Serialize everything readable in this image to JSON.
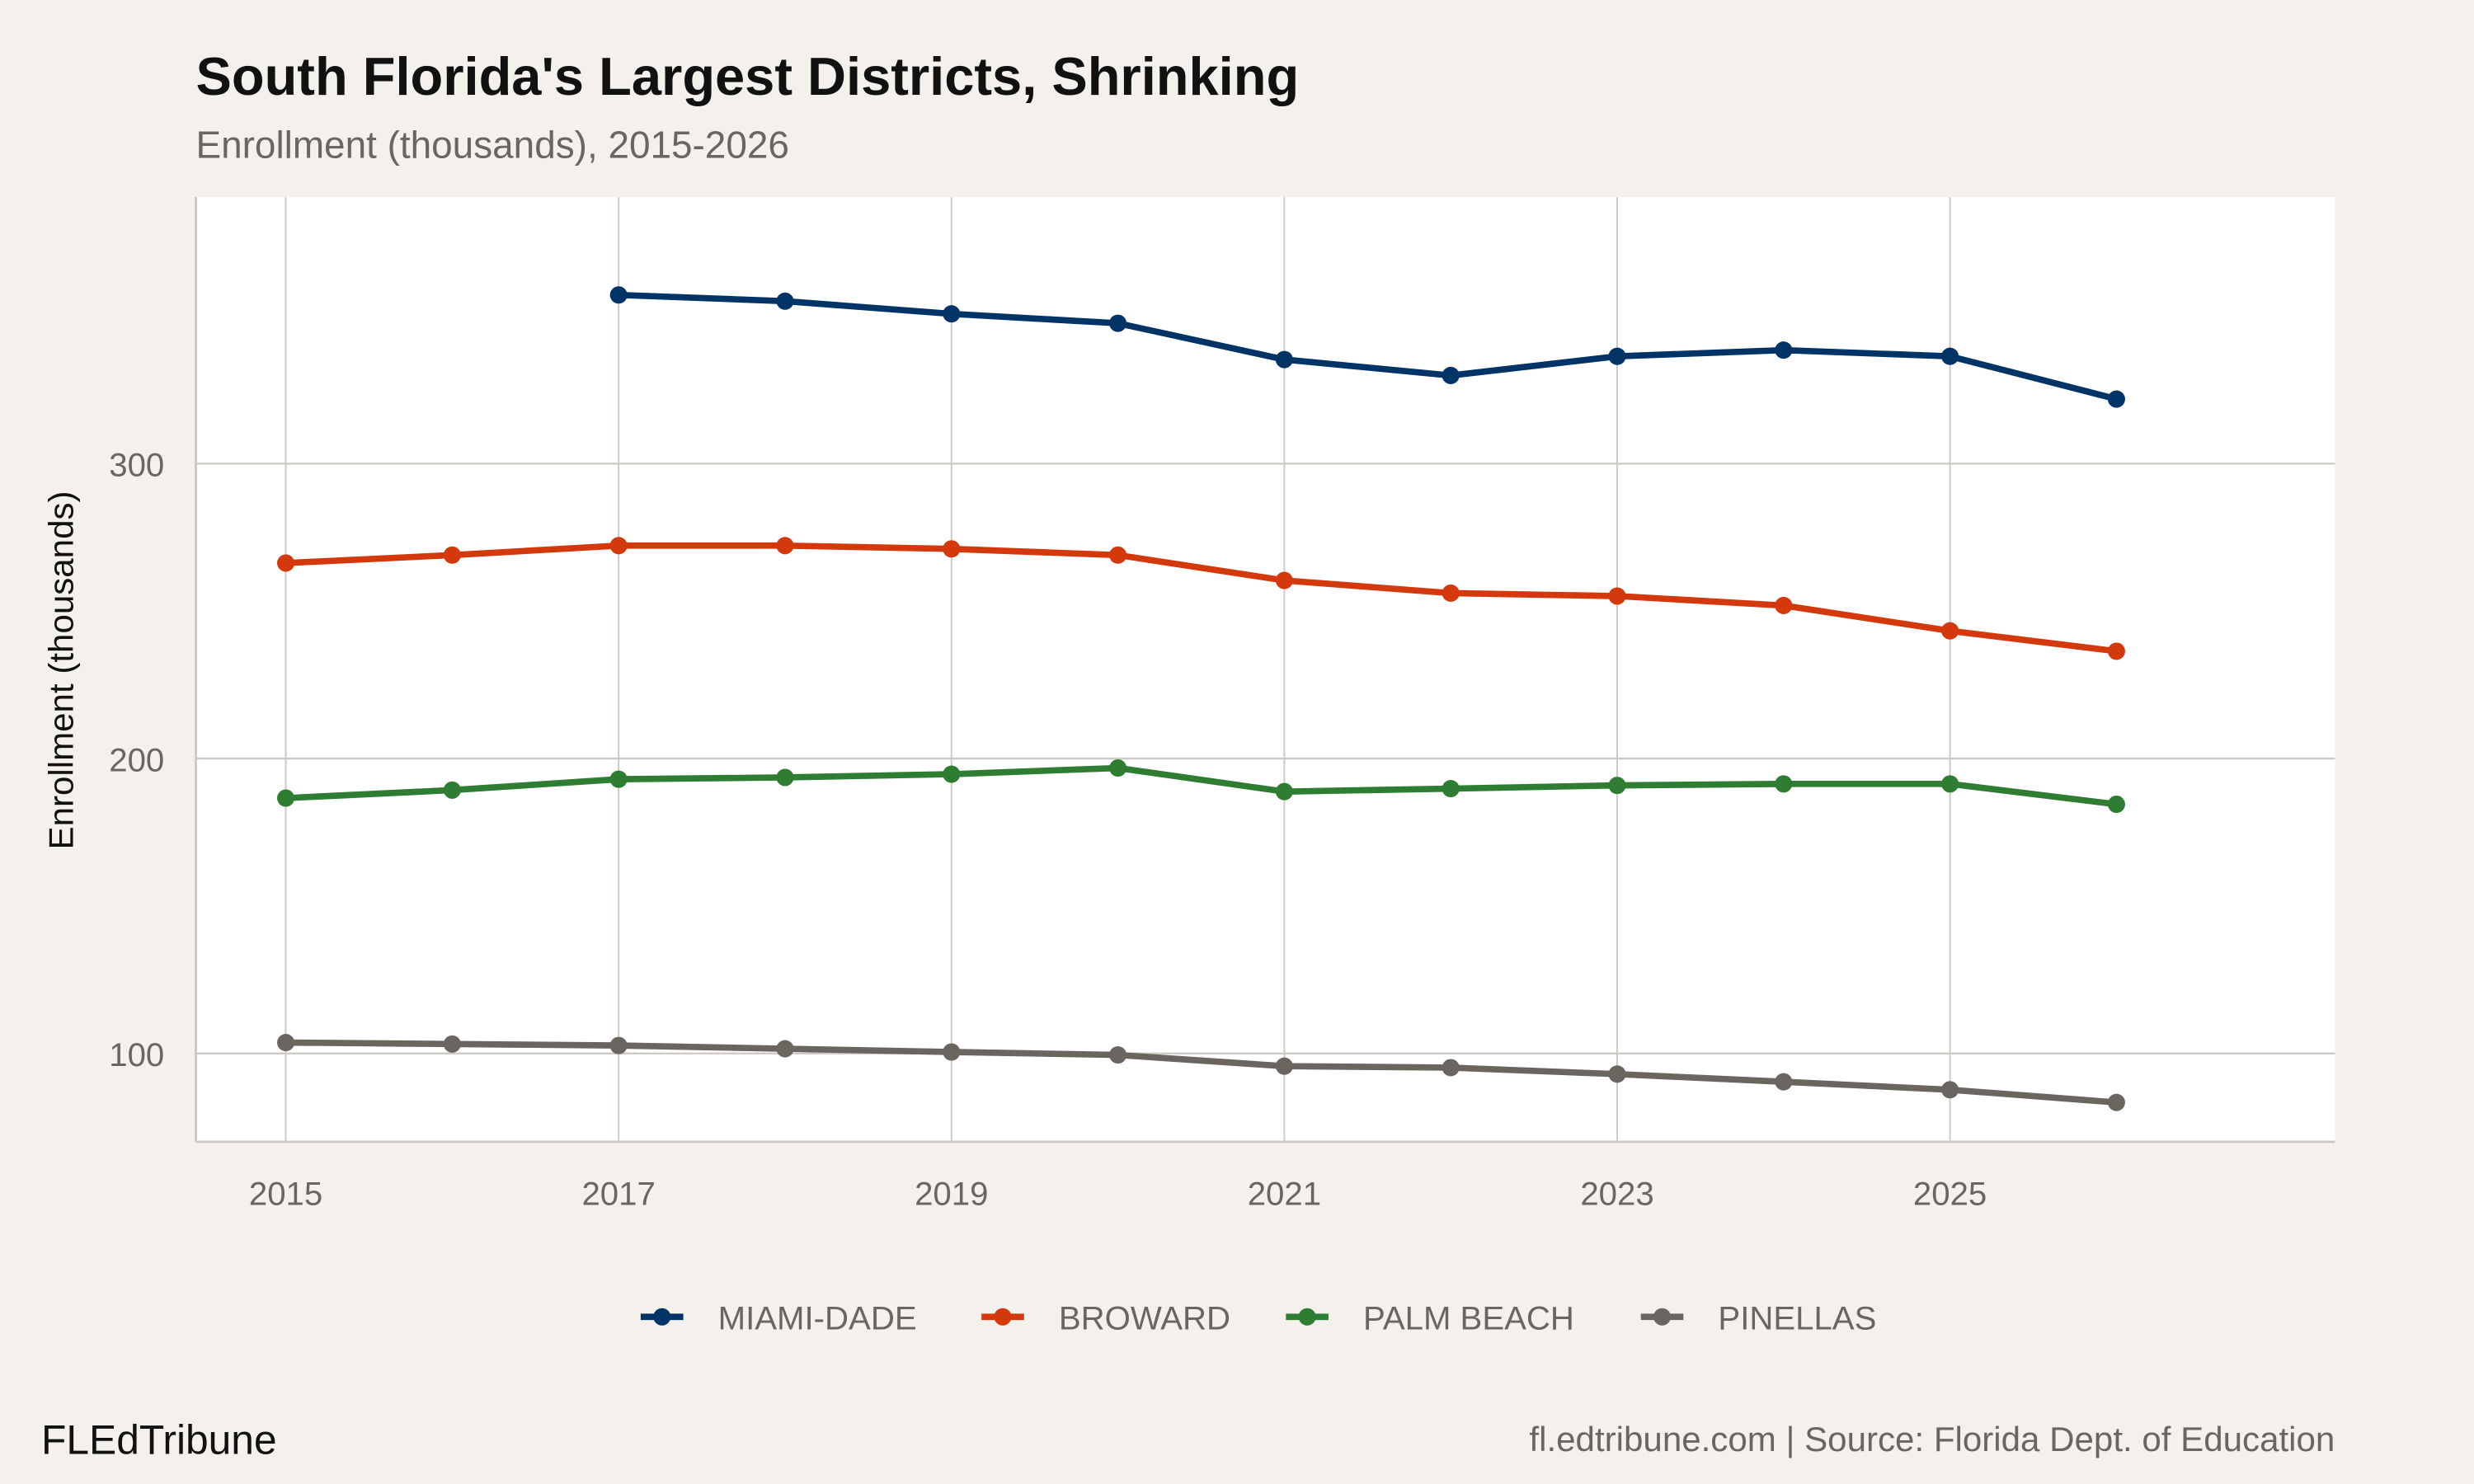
{
  "title": "South Florida's Largest Districts, Shrinking",
  "subtitle": "Enrollment (thousands), 2015-2026",
  "brand": "FLEdTribune",
  "caption": "fl.edtribune.com | Source: Florida Dept. of Education",
  "colors": {
    "background": "#f4f1ec",
    "panel": "#ffffff",
    "grid": "#cdc8c0"
  },
  "chart_data": {
    "type": "line",
    "title": "South Florida's Largest Districts, Shrinking",
    "subtitle": "Enrollment (thousands), 2015-2026",
    "xlabel": "",
    "ylabel": "Enrollment (thousands)",
    "xlim": [
      2014.45,
      2027.3
    ],
    "ylim": [
      70,
      390
    ],
    "x_ticks": [
      "2015",
      "2017",
      "2019",
      "2021",
      "2023",
      "2025"
    ],
    "y_ticks": [
      "100",
      "200",
      "300"
    ],
    "grid": true,
    "legend_position": "bottom",
    "x": [
      2015,
      2016,
      2017,
      2018,
      2019,
      2020,
      2021,
      2022,
      2023,
      2024,
      2025,
      2026
    ],
    "series": [
      {
        "name": "MIAMI-DADE",
        "color": "#003366",
        "values": [
          null,
          null,
          357.2,
          355.1,
          350.8,
          347.6,
          335.3,
          329.9,
          336.4,
          338.5,
          336.4,
          321.9
        ]
      },
      {
        "name": "BROWARD",
        "color": "#d4380d",
        "values": [
          266.3,
          269.0,
          272.2,
          272.2,
          271.1,
          269.0,
          260.4,
          256.1,
          255.1,
          251.9,
          243.3,
          236.4
        ]
      },
      {
        "name": "PALM BEACH",
        "color": "#2e7d32",
        "values": [
          186.6,
          189.3,
          193.0,
          193.6,
          194.7,
          196.8,
          188.8,
          189.8,
          190.9,
          191.4,
          191.4,
          184.5
        ]
      },
      {
        "name": "PINELLAS",
        "color": "#6b6560",
        "values": [
          103.7,
          103.2,
          102.7,
          101.6,
          100.5,
          99.5,
          95.7,
          95.2,
          93.0,
          90.4,
          87.7,
          83.4
        ]
      }
    ]
  }
}
